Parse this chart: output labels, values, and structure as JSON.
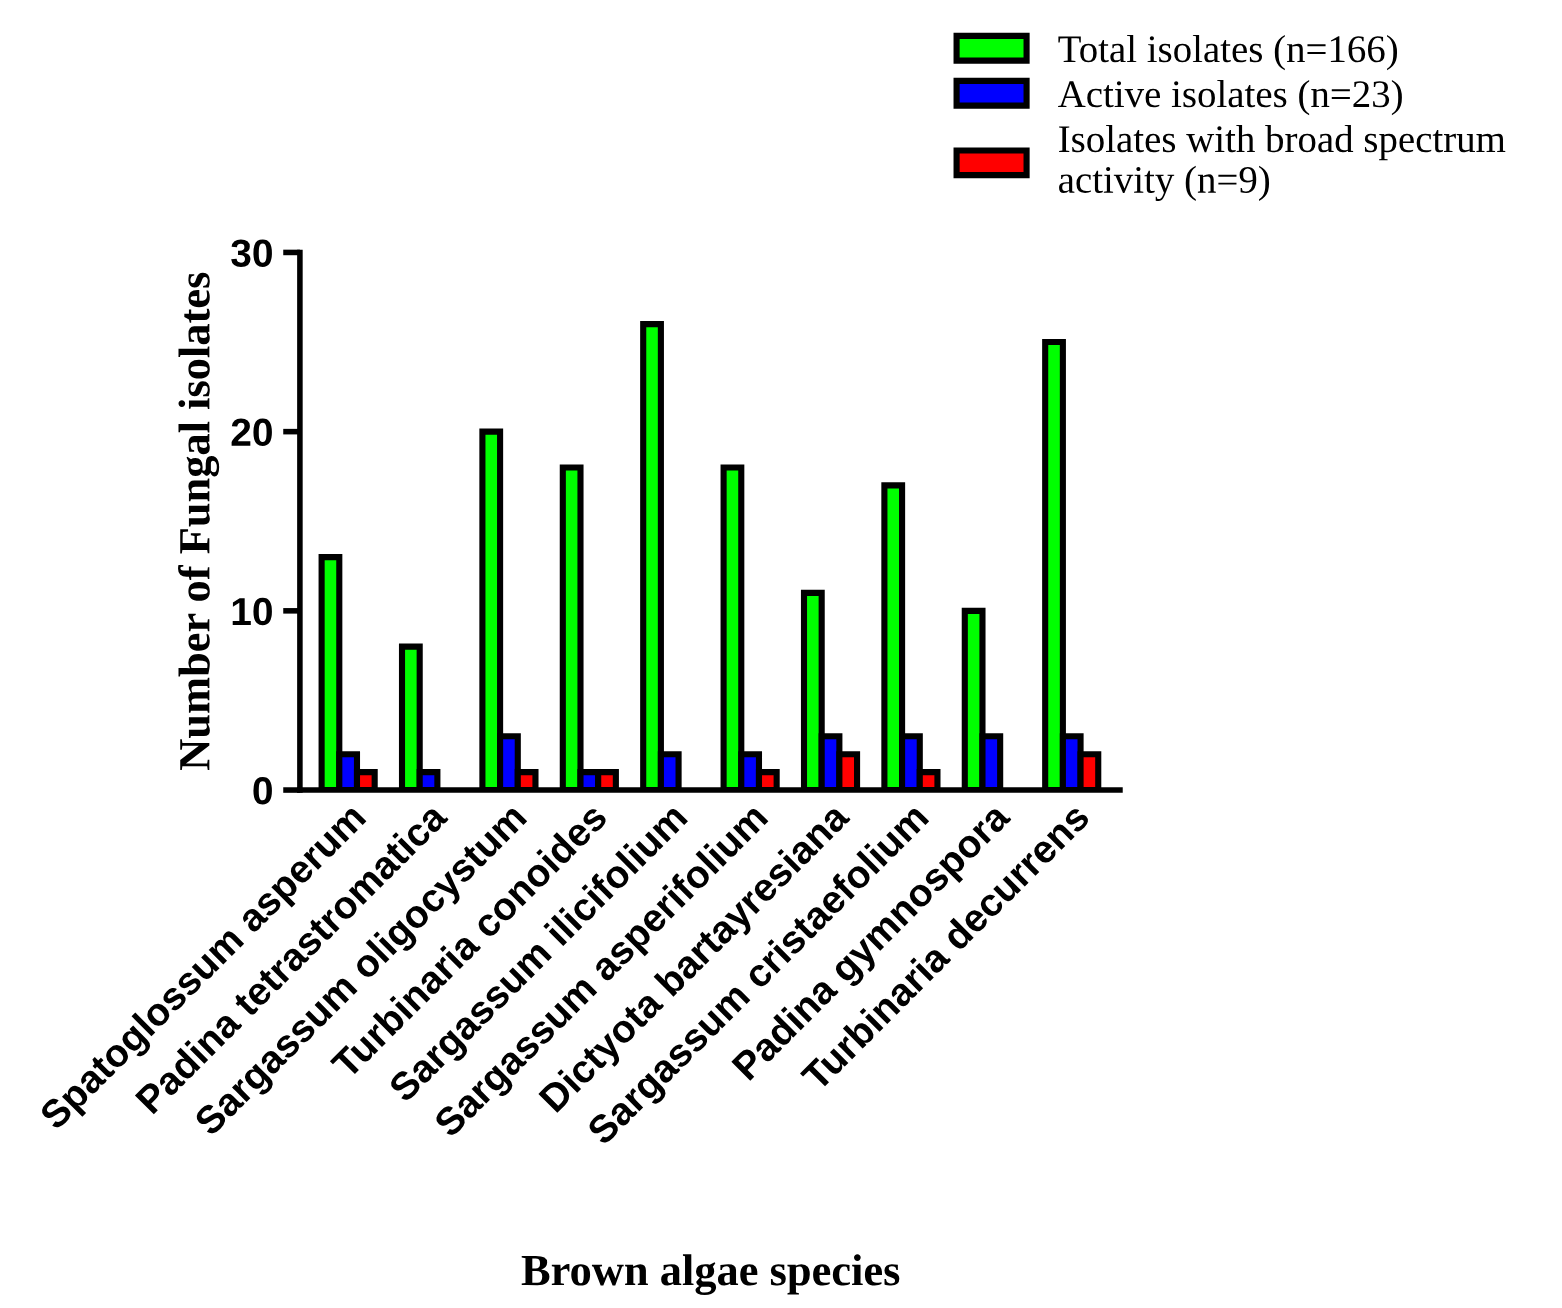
{
  "chart_data": {
    "type": "bar",
    "xlabel": "Brown algae species",
    "ylabel": "Number of Fungal isolates",
    "categories": [
      "Spatoglossum asperum",
      "Padina tetrastromatica",
      "Sargassum oligocystum",
      "Turbinaria conoides",
      "Sargassum ilicifolium",
      "Sargassum asperifolium",
      "Dictyota bartayresiana",
      "Sargassum cristaefolium",
      "Padina gymnospora",
      "Turbinaria decurrens"
    ],
    "series": [
      {
        "name": "Total isolates (n=166)",
        "color": "#00ff00",
        "values": [
          13,
          8,
          20,
          18,
          26,
          18,
          11,
          17,
          10,
          25
        ]
      },
      {
        "name": "Active isolates (n=23)",
        "color": "#0000ff",
        "values": [
          2,
          1,
          3,
          1,
          2,
          2,
          3,
          3,
          3,
          3
        ]
      },
      {
        "name": "Isolates with broad spectrum\nactivity (n=9)",
        "color": "#ff0000",
        "values": [
          1,
          0,
          1,
          1,
          0,
          1,
          2,
          1,
          0,
          2
        ]
      }
    ],
    "ylim": [
      0,
      30
    ],
    "yticks": [
      0,
      10,
      20,
      30
    ],
    "grid": false,
    "legend": "top right"
  }
}
